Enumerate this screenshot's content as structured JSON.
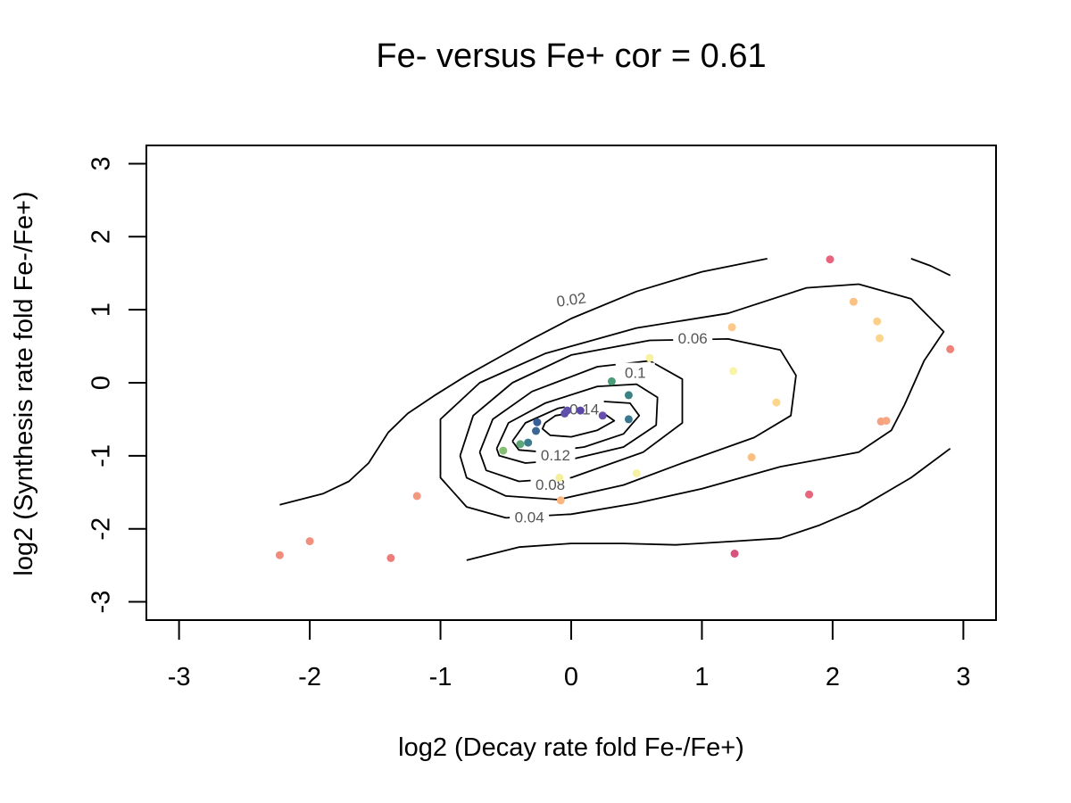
{
  "chart_data": {
    "type": "scatter",
    "title": "Fe- versus Fe+  cor =  0.61",
    "xlabel": "log2 (Decay rate fold Fe-/Fe+)",
    "ylabel": "log2 (Synthesis rate fold Fe-/Fe+)",
    "xlim": [
      -3.25,
      3.25
    ],
    "ylim": [
      -3.25,
      3.25
    ],
    "x_ticks": [
      -3,
      -2,
      -1,
      0,
      1,
      2,
      3
    ],
    "y_ticks": [
      -3,
      -2,
      -1,
      0,
      1,
      2,
      3
    ],
    "x_tick_labels": [
      "-3",
      "-2",
      "-1",
      "0",
      "1",
      "2",
      "3"
    ],
    "y_tick_labels": [
      "-3",
      "-2",
      "-1",
      "0",
      "1",
      "2",
      "3"
    ],
    "grid": false,
    "legend": "none",
    "contour_line_color": "#000000",
    "contour_levels": [
      {
        "level": 0.02,
        "label": "0.02",
        "label_xy": [
          0.0,
          1.14
        ],
        "label_angle": -8,
        "segments": [
          [
            [
              -2.23,
              -1.67
            ],
            [
              -1.9,
              -1.52
            ],
            [
              -1.7,
              -1.35
            ],
            [
              -1.55,
              -1.1
            ],
            [
              -1.4,
              -0.68
            ],
            [
              -1.25,
              -0.42
            ],
            [
              -1.05,
              -0.18
            ],
            [
              -0.8,
              0.1
            ],
            [
              -0.55,
              0.35
            ],
            [
              -0.3,
              0.6
            ],
            [
              0.0,
              0.88
            ],
            [
              0.5,
              1.25
            ],
            [
              1.0,
              1.52
            ],
            [
              1.5,
              1.7
            ]
          ],
          [
            [
              2.6,
              1.7
            ],
            [
              2.75,
              1.6
            ],
            [
              2.9,
              1.47
            ]
          ],
          [
            [
              2.9,
              -0.9
            ],
            [
              2.6,
              -1.3
            ],
            [
              2.2,
              -1.72
            ],
            [
              1.9,
              -1.95
            ],
            [
              1.6,
              -2.13
            ],
            [
              1.25,
              -2.17
            ],
            [
              0.8,
              -2.22
            ],
            [
              0.4,
              -2.2
            ],
            [
              0.0,
              -2.2
            ],
            [
              -0.4,
              -2.25
            ],
            [
              -0.8,
              -2.43
            ]
          ]
        ]
      },
      {
        "level": 0.04,
        "label": "0.04",
        "label_xy": [
          -0.32,
          -1.84
        ],
        "label_angle": 0,
        "segments": [
          [
            [
              -1.0,
              -1.0
            ],
            [
              -1.0,
              -0.5
            ],
            [
              -0.7,
              0.0
            ],
            [
              -0.2,
              0.4
            ],
            [
              0.5,
              0.75
            ],
            [
              1.2,
              0.95
            ],
            [
              1.8,
              1.3
            ],
            [
              2.2,
              1.35
            ],
            [
              2.6,
              1.15
            ],
            [
              2.85,
              0.7
            ],
            [
              2.7,
              0.3
            ],
            [
              2.55,
              -0.3
            ],
            [
              2.45,
              -0.65
            ],
            [
              2.2,
              -0.95
            ],
            [
              1.6,
              -1.15
            ],
            [
              1.0,
              -1.45
            ],
            [
              0.5,
              -1.65
            ],
            [
              0.0,
              -1.8
            ],
            [
              -0.5,
              -1.85
            ],
            [
              -0.8,
              -1.7
            ],
            [
              -1.0,
              -1.3
            ],
            [
              -1.0,
              -1.0
            ]
          ]
        ]
      },
      {
        "level": 0.06,
        "label": "0.06",
        "label_xy": [
          0.93,
          0.61
        ],
        "label_angle": 0,
        "segments": [
          [
            [
              -0.85,
              -1.0
            ],
            [
              -0.75,
              -0.45
            ],
            [
              -0.45,
              0.0
            ],
            [
              0.0,
              0.38
            ],
            [
              0.6,
              0.58
            ],
            [
              1.2,
              0.6
            ],
            [
              1.6,
              0.45
            ],
            [
              1.72,
              0.1
            ],
            [
              1.68,
              -0.45
            ],
            [
              1.4,
              -0.75
            ],
            [
              0.85,
              -1.1
            ],
            [
              0.4,
              -1.4
            ],
            [
              -0.1,
              -1.6
            ],
            [
              -0.5,
              -1.55
            ],
            [
              -0.8,
              -1.3
            ],
            [
              -0.85,
              -1.0
            ]
          ]
        ]
      },
      {
        "level": 0.08,
        "label": "0.08",
        "label_xy": [
          -0.16,
          -1.39
        ],
        "label_angle": 0,
        "segments": [
          [
            [
              -0.7,
              -0.95
            ],
            [
              -0.6,
              -0.5
            ],
            [
              -0.3,
              -0.12
            ],
            [
              0.2,
              0.22
            ],
            [
              0.6,
              0.3
            ],
            [
              0.85,
              0.05
            ],
            [
              0.85,
              -0.55
            ],
            [
              0.55,
              -0.95
            ],
            [
              0.0,
              -1.3
            ],
            [
              -0.4,
              -1.35
            ],
            [
              -0.65,
              -1.2
            ],
            [
              -0.7,
              -0.95
            ]
          ]
        ]
      },
      {
        "level": 0.1,
        "label": "0.1",
        "label_xy": [
          0.49,
          0.14
        ],
        "label_angle": 0,
        "segments": [
          [
            [
              -0.57,
              -0.9
            ],
            [
              -0.48,
              -0.55
            ],
            [
              -0.2,
              -0.28
            ],
            [
              0.2,
              -0.05
            ],
            [
              0.5,
              -0.02
            ],
            [
              0.66,
              -0.2
            ],
            [
              0.65,
              -0.58
            ],
            [
              0.4,
              -0.88
            ],
            [
              0.0,
              -1.05
            ],
            [
              -0.35,
              -1.1
            ],
            [
              -0.55,
              -1.0
            ],
            [
              -0.57,
              -0.9
            ]
          ]
        ]
      },
      {
        "level": 0.12,
        "label": "0.12",
        "label_xy": [
          -0.12,
          -0.99
        ],
        "label_angle": 0,
        "segments": [
          [
            [
              -0.45,
              -0.8
            ],
            [
              -0.35,
              -0.55
            ],
            [
              -0.1,
              -0.35
            ],
            [
              0.2,
              -0.25
            ],
            [
              0.45,
              -0.28
            ],
            [
              0.52,
              -0.45
            ],
            [
              0.4,
              -0.7
            ],
            [
              0.1,
              -0.88
            ],
            [
              -0.2,
              -0.95
            ],
            [
              -0.4,
              -0.92
            ],
            [
              -0.45,
              -0.8
            ]
          ]
        ]
      },
      {
        "level": 0.14,
        "label": "0.14",
        "label_xy": [
          0.1,
          -0.36
        ],
        "label_angle": 0,
        "segments": [
          [
            [
              -0.2,
              -0.55
            ],
            [
              -0.12,
              -0.45
            ],
            [
              0.05,
              -0.4
            ],
            [
              0.25,
              -0.42
            ],
            [
              0.33,
              -0.52
            ],
            [
              0.2,
              -0.65
            ],
            [
              0.0,
              -0.74
            ],
            [
              -0.16,
              -0.72
            ],
            [
              -0.22,
              -0.63
            ],
            [
              -0.2,
              -0.55
            ]
          ]
        ]
      }
    ],
    "points": [
      {
        "x": -2.23,
        "y": -2.36,
        "color": "#ef8c7e"
      },
      {
        "x": -2.0,
        "y": -2.17,
        "color": "#f2907f"
      },
      {
        "x": -1.38,
        "y": -2.4,
        "color": "#ed7d7a"
      },
      {
        "x": -1.18,
        "y": -1.55,
        "color": "#f3977f"
      },
      {
        "x": -0.52,
        "y": -0.93,
        "color": "#86bf73"
      },
      {
        "x": -0.39,
        "y": -0.84,
        "color": "#5fa77a"
      },
      {
        "x": -0.33,
        "y": -0.82,
        "color": "#3b7d8c"
      },
      {
        "x": -0.27,
        "y": -0.66,
        "color": "#3c6795"
      },
      {
        "x": -0.26,
        "y": -0.54,
        "color": "#375e96"
      },
      {
        "x": -0.05,
        "y": -0.42,
        "color": "#5a4faa"
      },
      {
        "x": -0.03,
        "y": -0.38,
        "color": "#6050ab"
      },
      {
        "x": 0.07,
        "y": -0.38,
        "color": "#5b47a6"
      },
      {
        "x": 0.24,
        "y": -0.45,
        "color": "#6a4fac"
      },
      {
        "x": 0.31,
        "y": 0.02,
        "color": "#4c9b79"
      },
      {
        "x": 0.44,
        "y": -0.17,
        "color": "#3b8382"
      },
      {
        "x": 0.44,
        "y": -0.5,
        "color": "#3b7890"
      },
      {
        "x": -0.09,
        "y": -1.3,
        "color": "#f5ee9a"
      },
      {
        "x": -0.08,
        "y": -1.61,
        "color": "#fbb57e"
      },
      {
        "x": 0.5,
        "y": -1.24,
        "color": "#f7f3a4"
      },
      {
        "x": 0.6,
        "y": 0.34,
        "color": "#f8f1a1"
      },
      {
        "x": 1.23,
        "y": 0.76,
        "color": "#fcc988"
      },
      {
        "x": 1.24,
        "y": 0.16,
        "color": "#f9f4a6"
      },
      {
        "x": 1.38,
        "y": -1.02,
        "color": "#fbbf83"
      },
      {
        "x": 1.57,
        "y": -0.27,
        "color": "#fdd58c"
      },
      {
        "x": 1.25,
        "y": -2.34,
        "color": "#d9527e"
      },
      {
        "x": 1.82,
        "y": -1.53,
        "color": "#e6667d"
      },
      {
        "x": 1.98,
        "y": 1.69,
        "color": "#e8647d"
      },
      {
        "x": 2.16,
        "y": 1.11,
        "color": "#fcc083"
      },
      {
        "x": 2.34,
        "y": 0.84,
        "color": "#fdd08a"
      },
      {
        "x": 2.36,
        "y": 0.61,
        "color": "#fdd48c"
      },
      {
        "x": 2.37,
        "y": -0.53,
        "color": "#f5a282"
      },
      {
        "x": 2.41,
        "y": -0.52,
        "color": "#f6a781"
      },
      {
        "x": 2.9,
        "y": 0.46,
        "color": "#ef8279"
      }
    ]
  }
}
